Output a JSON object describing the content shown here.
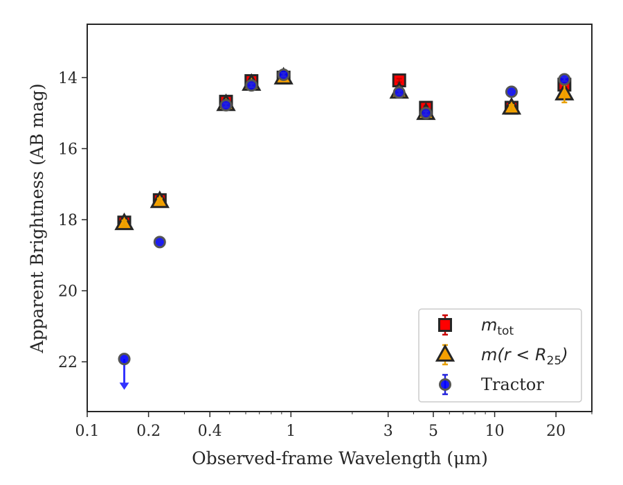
{
  "chart_data": {
    "type": "scatter",
    "title": "",
    "xlabel": "Observed-frame Wavelength (μm)",
    "ylabel": "Apparent Brightness (AB mag)",
    "x_scale": "log",
    "xlim": [
      0.1,
      30
    ],
    "ylim": [
      23.4,
      12.5
    ],
    "y_inverted": true,
    "x_ticks": [
      0.1,
      0.2,
      0.4,
      1,
      3,
      5,
      10,
      20
    ],
    "x_tick_labels": [
      "0.1",
      "0.2",
      "0.4",
      "1",
      "3",
      "5",
      "10",
      "20"
    ],
    "y_ticks": [
      14,
      16,
      18,
      20,
      22
    ],
    "y_tick_labels": [
      "14",
      "16",
      "18",
      "20",
      "22"
    ],
    "grid": false,
    "legend_position": "lower-right",
    "series": [
      {
        "key": "mtot",
        "legend_base": "m",
        "legend_sub": "tot",
        "legend_rest": "",
        "marker": "square",
        "color": "#ff0000",
        "edge_color": "#262626",
        "points": [
          {
            "x": 0.152,
            "y": 18.08,
            "err": 0.1
          },
          {
            "x": 0.227,
            "y": 17.45,
            "err": 0.1
          },
          {
            "x": 0.48,
            "y": 14.68,
            "err": 0.1
          },
          {
            "x": 0.64,
            "y": 14.1,
            "err": 0.08
          },
          {
            "x": 0.92,
            "y": 14.0,
            "err": 0.08
          },
          {
            "x": 3.4,
            "y": 14.08,
            "err": 0.05
          },
          {
            "x": 4.6,
            "y": 14.85,
            "err": 0.05
          },
          {
            "x": 12.1,
            "y": 14.85,
            "err": 0.1
          },
          {
            "x": 22.0,
            "y": 14.2,
            "err": 0.15
          }
        ]
      },
      {
        "key": "mr25",
        "legend_base": "m",
        "legend_sub": "25",
        "legend_rest": "(r < R",
        "marker": "triangle",
        "color": "#f5a000",
        "edge_color": "#262626",
        "points": [
          {
            "x": 0.152,
            "y": 18.1,
            "err": 0.08
          },
          {
            "x": 0.227,
            "y": 17.48,
            "err": 0.08
          },
          {
            "x": 0.48,
            "y": 14.75,
            "err": 0.08
          },
          {
            "x": 0.64,
            "y": 14.18,
            "err": 0.06
          },
          {
            "x": 0.92,
            "y": 14.0,
            "err": 0.06
          },
          {
            "x": 3.4,
            "y": 14.4,
            "err": 0.05
          },
          {
            "x": 4.6,
            "y": 15.0,
            "err": 0.05
          },
          {
            "x": 12.1,
            "y": 14.85,
            "err": 0.08
          },
          {
            "x": 22.0,
            "y": 14.45,
            "err": 0.25
          }
        ]
      },
      {
        "key": "tractor",
        "legend_base": "Tractor",
        "legend_sub": "",
        "legend_rest": "",
        "marker": "circle",
        "color": "#0000ff",
        "edge_color": "#555555",
        "points": [
          {
            "x": 0.227,
            "y": 18.63,
            "err": 0.05
          },
          {
            "x": 0.48,
            "y": 14.78,
            "err": 0.05
          },
          {
            "x": 0.64,
            "y": 14.22,
            "err": 0.05
          },
          {
            "x": 0.92,
            "y": 13.92,
            "err": 0.05
          },
          {
            "x": 3.4,
            "y": 14.42,
            "err": 0.05
          },
          {
            "x": 4.6,
            "y": 15.0,
            "err": 0.05
          },
          {
            "x": 12.1,
            "y": 14.4,
            "err": 0.05
          },
          {
            "x": 22.0,
            "y": 14.05,
            "err": 0.05
          }
        ],
        "upper_limits": [
          {
            "x": 0.152,
            "y": 21.92
          }
        ]
      }
    ]
  }
}
